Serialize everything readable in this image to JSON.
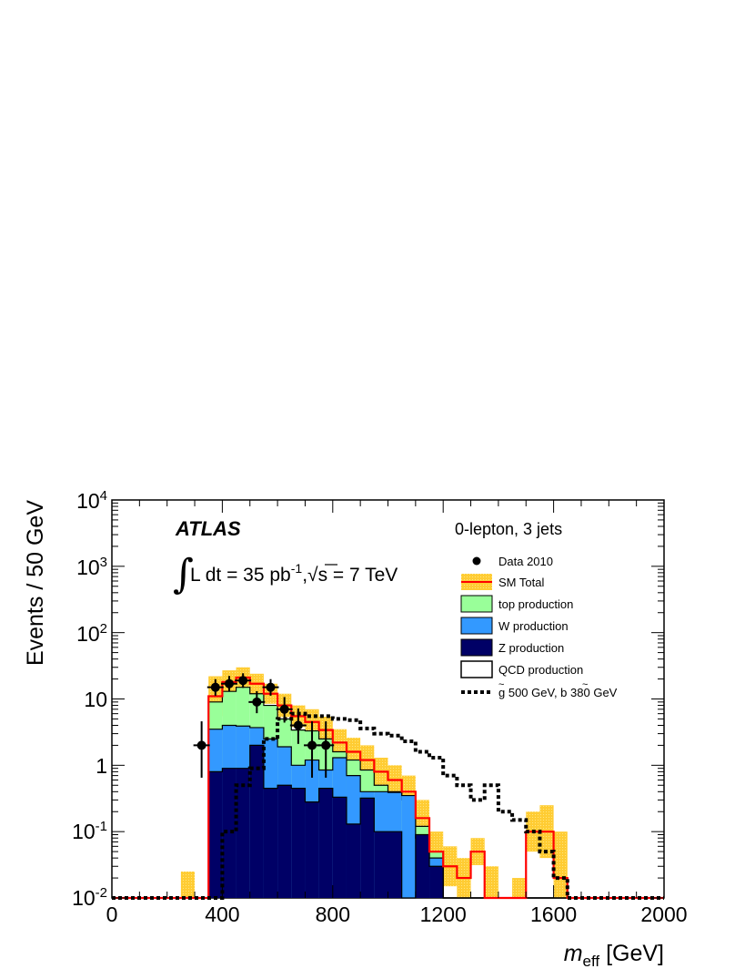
{
  "chart_data": {
    "type": "histogram",
    "bin_width": 50,
    "x_start": 0,
    "xlim": [
      0,
      2000
    ],
    "ylim": [
      0.01,
      10000
    ],
    "y_scale": "log",
    "xlabel_main": "m",
    "xlabel_sub": "eff",
    "xlabel_unit": " [GeV]",
    "ylabel": "Events / 50 GeV",
    "x_ticks": [
      "0",
      "400",
      "800",
      "1200",
      "1600",
      "2000"
    ],
    "y_ticks": [
      {
        "base": "10",
        "exp": "-2"
      },
      {
        "base": "10",
        "exp": "-1"
      },
      {
        "base": "1",
        "exp": ""
      },
      {
        "base": "10",
        "exp": ""
      },
      {
        "base": "10",
        "exp": "2"
      },
      {
        "base": "10",
        "exp": "3"
      },
      {
        "base": "10",
        "exp": "4"
      }
    ],
    "atlas_label": "ATLAS",
    "lumi_label_a": "L dt = 35 pb",
    "lumi_label_exp": "-1",
    "lumi_label_b": ",",
    "lumi_label_c": "s = 7 TeV",
    "channel_label": "0-lepton, 3 jets",
    "legend": [
      {
        "key": "data",
        "label": "Data 2010"
      },
      {
        "key": "sm_total",
        "label": "SM Total"
      },
      {
        "key": "top",
        "label": "top production"
      },
      {
        "key": "w",
        "label": "W production"
      },
      {
        "key": "z",
        "label": "Z production"
      },
      {
        "key": "qcd",
        "label": "QCD production"
      },
      {
        "key": "signal",
        "label": "g 500 GeV, b 380 GeV"
      }
    ],
    "colors": {
      "sm_total_line": "#ff0000",
      "sm_band": "#ffcc33",
      "top": "#99ff99",
      "w": "#3399ff",
      "z": "#000066",
      "qcd": "#ffffff",
      "signal": "#000000",
      "data": "#000000"
    },
    "series": {
      "z": [
        0,
        0,
        0,
        0,
        0,
        0,
        0,
        0.8,
        0.9,
        0.9,
        2.0,
        0.45,
        0.5,
        0.45,
        0.28,
        0.45,
        0.33,
        0.13,
        0.32,
        0.1,
        0.1,
        0,
        0.09,
        0.03,
        0,
        0,
        0,
        0,
        0,
        0,
        0,
        0,
        0,
        0,
        0,
        0,
        0,
        0,
        0,
        0
      ],
      "w": [
        0,
        0,
        0,
        0,
        0,
        0,
        0,
        3.5,
        4.0,
        3.9,
        3.7,
        2.5,
        1.9,
        1.0,
        1.2,
        0.85,
        1.3,
        0.7,
        0.4,
        0.4,
        0.39,
        0.35,
        0.08,
        0.04,
        0,
        0,
        0,
        0,
        0,
        0,
        0,
        0,
        0,
        0,
        0,
        0,
        0,
        0,
        0,
        0
      ],
      "top": [
        0,
        0,
        0,
        0,
        0,
        0,
        0,
        9,
        13,
        15,
        12,
        8,
        5,
        3.4,
        3.3,
        2.5,
        1.6,
        1.2,
        0.85,
        0.5,
        0.4,
        0.3,
        0.12,
        0.05,
        0,
        0,
        0,
        0,
        0,
        0,
        0,
        0,
        0,
        0,
        0,
        0,
        0,
        0,
        0,
        0
      ],
      "sm_total": [
        0,
        0,
        0,
        0,
        0,
        0,
        0,
        11,
        18,
        21,
        17,
        12,
        8,
        5.5,
        4.5,
        3.4,
        2.2,
        1.6,
        1.2,
        0.8,
        0.6,
        0.4,
        0.16,
        0.05,
        0.03,
        0.02,
        0.05,
        0.01,
        0,
        0.01,
        0.1,
        0.1,
        0.02,
        0,
        0,
        0,
        0,
        0,
        0,
        0
      ],
      "sm_band_up": [
        0,
        0,
        0,
        0,
        0,
        0.025,
        0,
        22,
        27,
        30,
        24,
        17,
        12,
        8,
        7,
        5.4,
        3.5,
        2.6,
        2.0,
        1.3,
        1.0,
        0.7,
        0.3,
        0.1,
        0.06,
        0.04,
        0.08,
        0.03,
        0,
        0.02,
        0.2,
        0.25,
        0.1,
        0,
        0,
        0,
        0,
        0,
        0,
        0
      ],
      "signal": [
        0,
        0,
        0,
        0,
        0,
        0,
        0,
        0,
        0.1,
        0.5,
        0.9,
        2.5,
        5.0,
        6.0,
        5.5,
        5.5,
        5.0,
        4.8,
        3.6,
        3.0,
        2.8,
        2.3,
        1.6,
        1.3,
        0.7,
        0.5,
        0.3,
        0.5,
        0.2,
        0.15,
        0.1,
        0.05,
        0.02,
        0,
        0,
        0,
        0,
        0,
        0,
        0
      ],
      "data": [
        {
          "x": 325,
          "y": 2,
          "err_lo": 1.35,
          "err_hi": 2.6
        },
        {
          "x": 375,
          "y": 15,
          "err_lo": 3.8,
          "err_hi": 4.9
        },
        {
          "x": 425,
          "y": 17,
          "err_lo": 4.1,
          "err_hi": 5.2
        },
        {
          "x": 475,
          "y": 19,
          "err_lo": 4.3,
          "err_hi": 5.4
        },
        {
          "x": 525,
          "y": 9,
          "err_lo": 2.9,
          "err_hi": 4.1
        },
        {
          "x": 575,
          "y": 15,
          "err_lo": 3.8,
          "err_hi": 4.9
        },
        {
          "x": 625,
          "y": 7,
          "err_lo": 2.6,
          "err_hi": 3.7
        },
        {
          "x": 675,
          "y": 4,
          "err_lo": 1.9,
          "err_hi": 3.2
        },
        {
          "x": 725,
          "y": 2,
          "err_lo": 1.35,
          "err_hi": 2.6
        },
        {
          "x": 775,
          "y": 2,
          "err_lo": 1.35,
          "err_hi": 2.6
        }
      ]
    }
  }
}
